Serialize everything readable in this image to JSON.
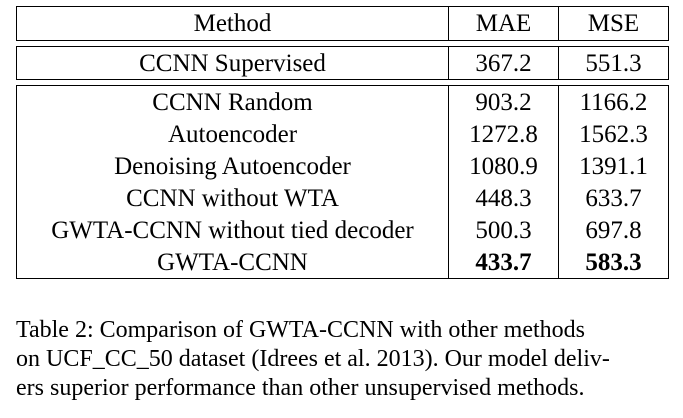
{
  "table": {
    "columns": [
      "Method",
      "MAE",
      "MSE"
    ],
    "supervised_row": {
      "method": "CCNN Supervised",
      "mae": "367.2",
      "mse": "551.3"
    },
    "rows": [
      {
        "method": "CCNN Random",
        "mae": "903.2",
        "mse": "1166.2"
      },
      {
        "method": "Autoencoder",
        "mae": "1272.8",
        "mse": "1562.3"
      },
      {
        "method": "Denoising Autoencoder",
        "mae": "1080.9",
        "mse": "1391.1"
      },
      {
        "method": "CCNN without WTA",
        "mae": "448.3",
        "mse": "633.7"
      },
      {
        "method": "GWTA-CCNN without tied decoder",
        "mae": "500.3",
        "mse": "697.8"
      },
      {
        "method": "GWTA-CCNN",
        "mae": "433.7",
        "mse": "583.3",
        "bold": true
      }
    ]
  },
  "caption": {
    "line1": "Table 2: Comparison of GWTA-CCNN with other methods",
    "line2": "on UCF_CC_50 dataset (Idrees et al. 2013). Our model deliv-",
    "line3": "ers superior performance than other unsupervised methods."
  }
}
